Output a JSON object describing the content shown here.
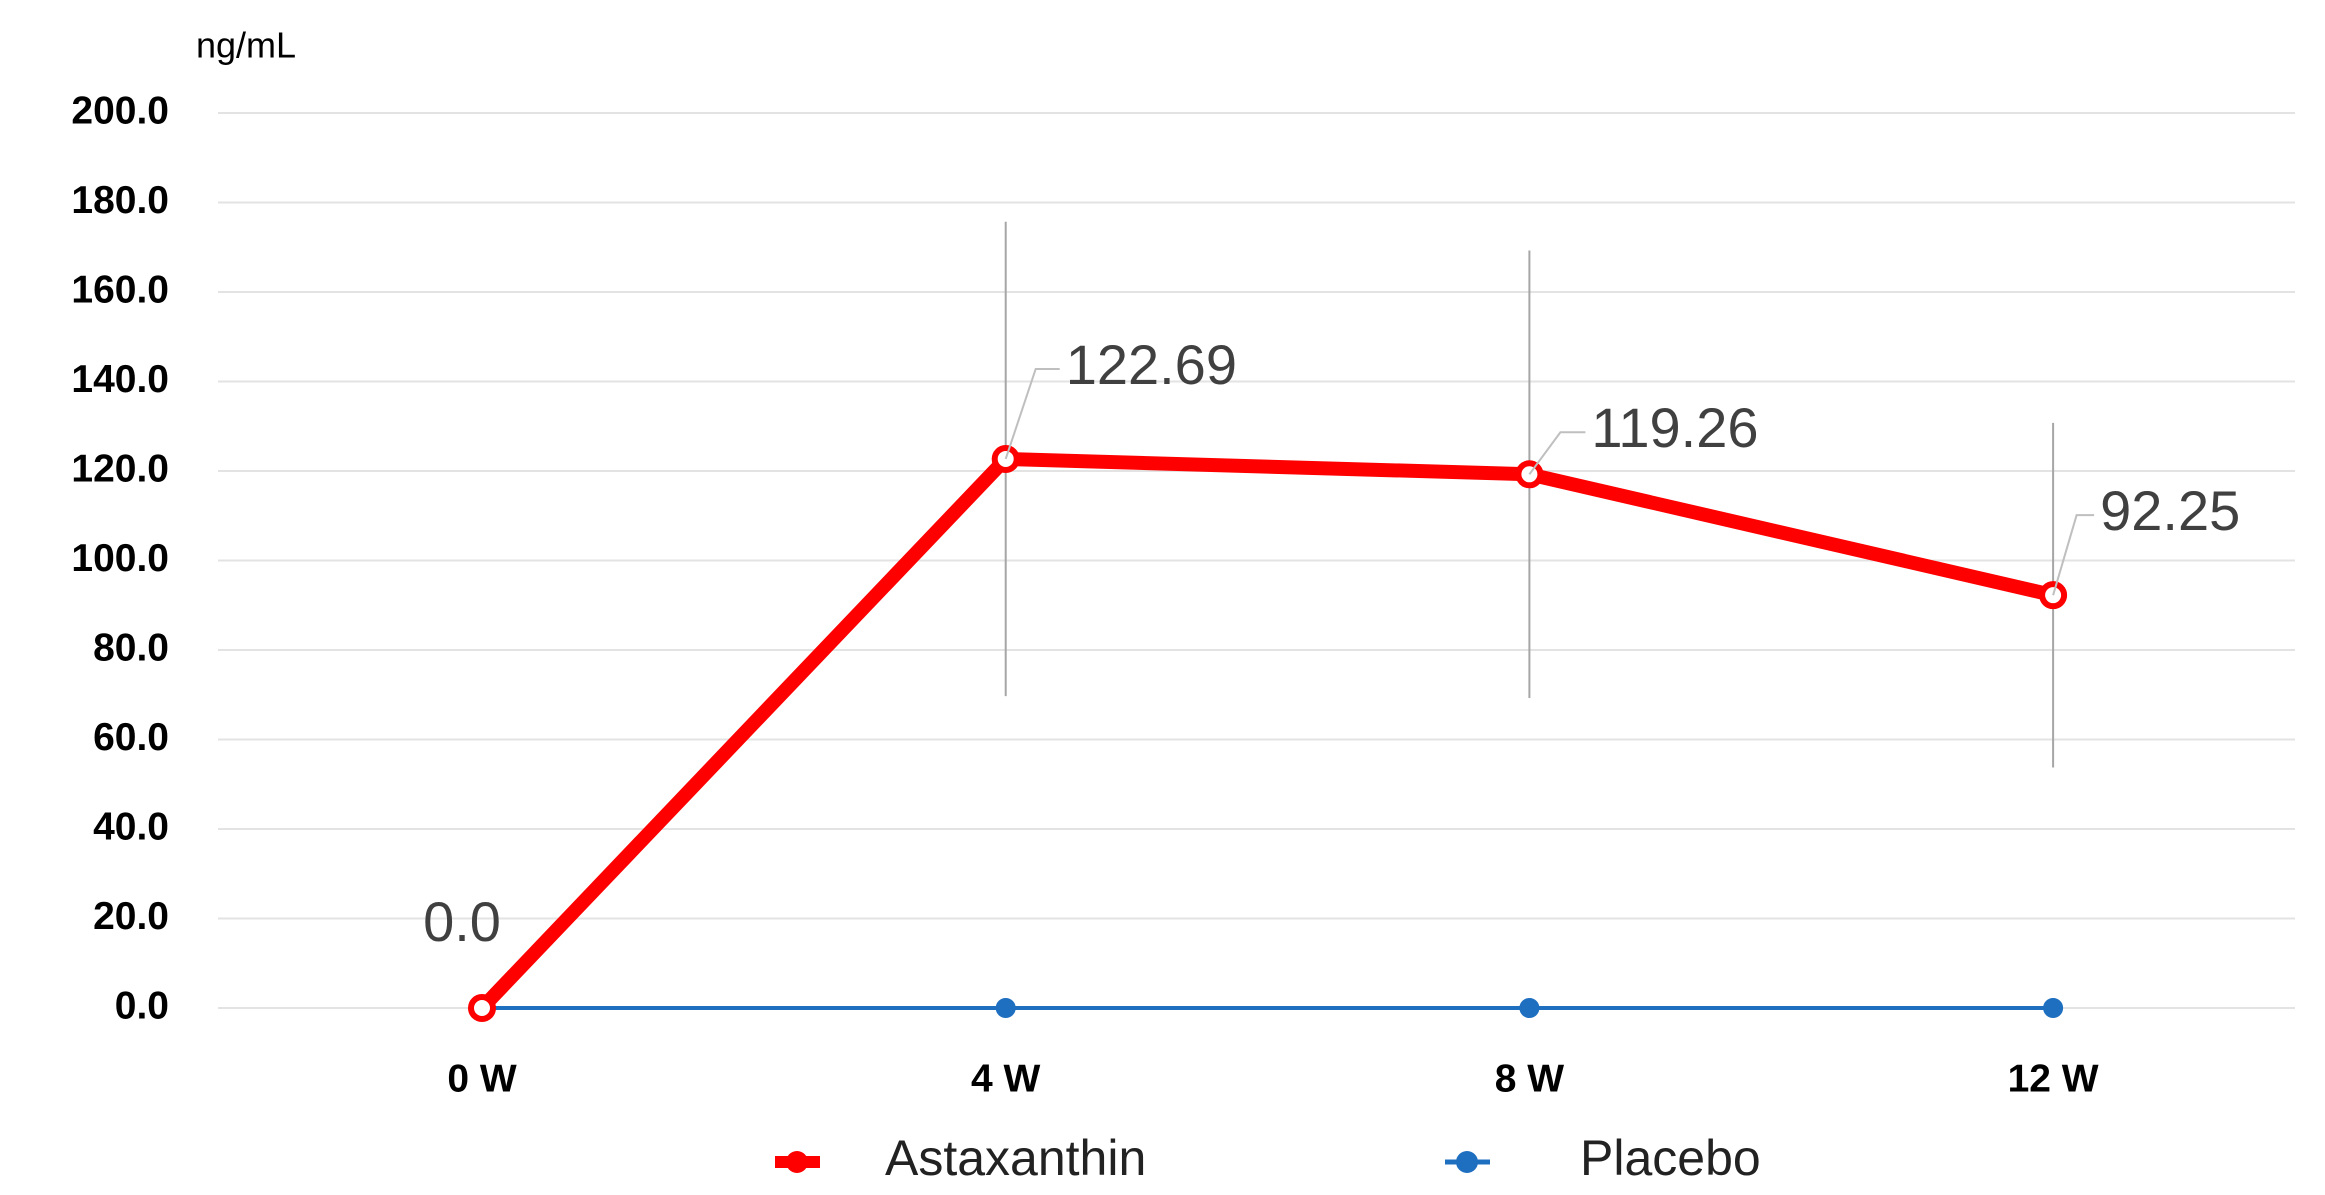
{
  "chart_data": {
    "type": "line",
    "y_axis_label": "ng/mL",
    "categories": [
      "0 W",
      "4 W",
      "8 W",
      "12 W"
    ],
    "series": [
      {
        "name": "Astaxanthin",
        "color": "#ff0000",
        "values": [
          0,
          122.69,
          119.26,
          92.25
        ],
        "value_labels": [
          "0.0",
          "122.69",
          "119.26",
          "92.25"
        ],
        "errors": [
          0,
          53,
          50,
          38.5
        ]
      },
      {
        "name": "Placebo",
        "color": "#1f6fc0",
        "values": [
          0,
          0,
          0,
          0
        ]
      }
    ],
    "ylim": [
      0,
      200
    ],
    "yticks": [
      {
        "value": 0,
        "label": "0.0"
      },
      {
        "value": 20,
        "label": "20.0"
      },
      {
        "value": 40,
        "label": "40.0"
      },
      {
        "value": 60,
        "label": "60.0"
      },
      {
        "value": 80,
        "label": "80.0"
      },
      {
        "value": 100,
        "label": "100.0"
      },
      {
        "value": 120,
        "label": "120.0"
      },
      {
        "value": 140,
        "label": "140.0"
      },
      {
        "value": 160,
        "label": "160.0"
      },
      {
        "value": 180,
        "label": "180.0"
      },
      {
        "value": 200,
        "label": "200.0"
      }
    ],
    "grid": true,
    "legend": "bottom"
  }
}
